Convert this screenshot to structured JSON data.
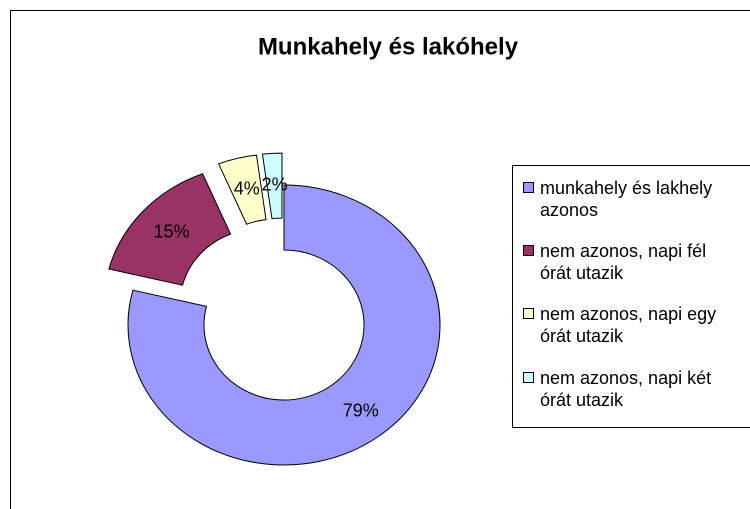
{
  "chart_data": {
    "type": "doughnut",
    "title": "Munkahely és lakóhely",
    "categories": [
      "munkahely és lakhely azonos",
      "nem azonos, napi fél órát utazik",
      "nem azonos, napi egy órát utazik",
      "nem azonos, napi két órát utazik"
    ],
    "values": [
      79,
      15,
      4,
      2
    ],
    "value_labels": [
      "79%",
      "15%",
      "4%",
      "2%"
    ],
    "colors": [
      "#9999ff",
      "#993366",
      "#ffffcc",
      "#ccffff"
    ],
    "legend": "right"
  }
}
